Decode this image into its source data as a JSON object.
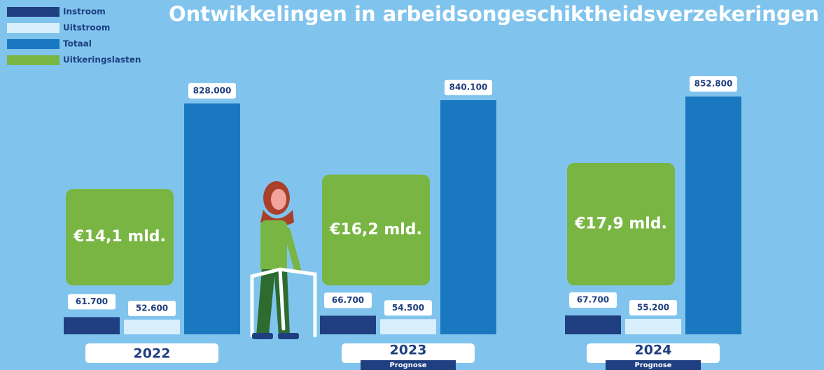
{
  "chart_data": {
    "type": "bar",
    "title": "Ontwikkelingen in arbeidsongeschiktheidsverzekeringen",
    "categories": [
      "2022",
      "2023",
      "2024"
    ],
    "category_notes": [
      null,
      "Prognose",
      "Prognose"
    ],
    "series": [
      {
        "name": "Instroom",
        "color": "#1f3f80",
        "values": [
          61700,
          66700,
          67700
        ],
        "value_labels": [
          "61.700",
          "66.700",
          "67.700"
        ]
      },
      {
        "name": "Uitstroom",
        "color": "#d9effb",
        "values": [
          52600,
          54500,
          55200
        ],
        "value_labels": [
          "52.600",
          "54.500",
          "55.200"
        ]
      },
      {
        "name": "Totaal",
        "color": "#1a78c0",
        "values": [
          828000,
          840100,
          852800
        ],
        "value_labels": [
          "828.000",
          "840.100",
          "852.800"
        ]
      },
      {
        "name": "Uitkeringslasten",
        "color": "#79b543",
        "values": [
          14.1,
          16.2,
          17.9
        ],
        "value_labels": [
          "€14,1 mld.",
          "€16,2 mld.",
          "€17,9 mld."
        ]
      }
    ]
  }
}
